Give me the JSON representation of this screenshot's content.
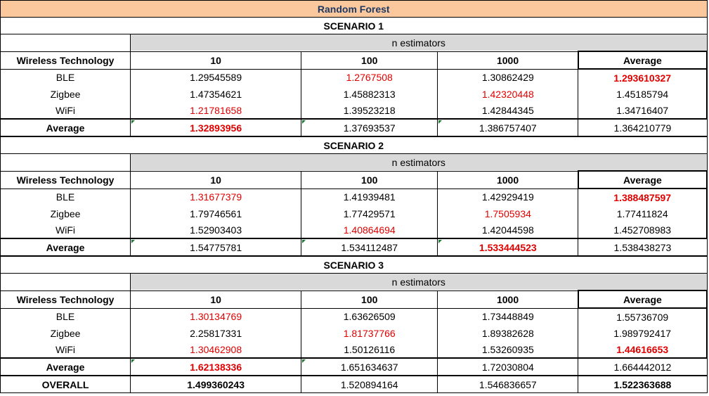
{
  "title": "Random Forest",
  "n_estimators_label": "n estimators",
  "column_headers": [
    "Wireless Technology",
    "10",
    "100",
    "1000",
    "Average"
  ],
  "scenarios": [
    {
      "name": "SCENARIO 1",
      "rows": [
        {
          "label": "BLE",
          "values": [
            "1.29545589",
            "1.2767508",
            "1.30862429",
            "1.293610327"
          ]
        },
        {
          "label": "Zigbee",
          "values": [
            "1.47354621",
            "1.45882313",
            "1.42320448",
            "1.45185794"
          ]
        },
        {
          "label": "WiFi",
          "values": [
            "1.21781658",
            "1.39523218",
            "1.42844345",
            "1.34716407"
          ]
        }
      ],
      "average": {
        "label": "Average",
        "values": [
          "1.32893956",
          "1.37693537",
          "1.386757407",
          "1.364210779"
        ]
      }
    },
    {
      "name": "SCENARIO 2",
      "rows": [
        {
          "label": "BLE",
          "values": [
            "1.31677379",
            "1.41939481",
            "1.42929419",
            "1.388487597"
          ]
        },
        {
          "label": "Zigbee",
          "values": [
            "1.79746561",
            "1.77429571",
            "1.7505934",
            "1.77411824"
          ]
        },
        {
          "label": "WiFi",
          "values": [
            "1.52903403",
            "1.40864694",
            "1.42044598",
            "1.452708983"
          ]
        }
      ],
      "average": {
        "label": "Average",
        "values": [
          "1.54775781",
          "1.534112487",
          "1.533444523",
          "1.538438273"
        ]
      }
    },
    {
      "name": "SCENARIO 3",
      "rows": [
        {
          "label": "BLE",
          "values": [
            "1.30134769",
            "1.63626509",
            "1.73448849",
            "1.55736709"
          ]
        },
        {
          "label": "Zigbee",
          "values": [
            "2.25817331",
            "1.81737766",
            "1.89382628",
            "1.989792417"
          ]
        },
        {
          "label": "WiFi",
          "values": [
            "1.30462908",
            "1.50126116",
            "1.53260935",
            "1.44616653"
          ]
        }
      ],
      "average": {
        "label": "Average",
        "values": [
          "1.62138336",
          "1.651634637",
          "1.72030804",
          "1.664442012"
        ]
      }
    }
  ],
  "overall": {
    "label": "OVERALL",
    "values": [
      "1.499360243",
      "1.520894164",
      "1.546836657",
      "1.522363688"
    ]
  },
  "colors": {
    "title_bg": "#fac89c",
    "title_text": "#1f3864",
    "header_gray": "#d9d9d9",
    "highlight": "#e00000"
  }
}
